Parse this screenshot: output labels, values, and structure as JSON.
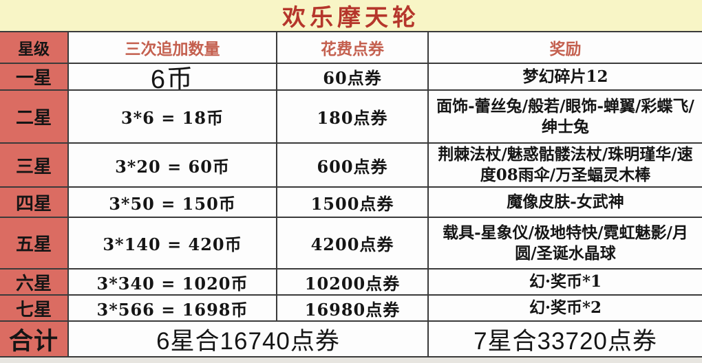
{
  "title": "欢乐摩天轮",
  "table": {
    "columns": [
      "星级",
      "三次追加数量",
      "花费点券",
      "奖励"
    ],
    "rows": [
      {
        "star": "一星",
        "quantity": "6币",
        "cost": "60点券",
        "reward": "梦幻碎片12"
      },
      {
        "star": "二星",
        "quantity": "3*6 = 18币",
        "cost": "180点券",
        "reward": "面饰-蕾丝兔/般若/眼饰-蝉翼/彩蝶飞/绅士兔"
      },
      {
        "star": "三星",
        "quantity": "3*20 = 60币",
        "cost": "600点券",
        "reward": "荆棘法杖/魅惑骷髅法杖/珠明瑾华/速度08雨伞/万圣蝠灵木棒"
      },
      {
        "star": "四星",
        "quantity": "3*50 = 150币",
        "cost": "1500点券",
        "reward": "魔像皮肤-女武神"
      },
      {
        "star": "五星",
        "quantity": "3*140 = 420币",
        "cost": "4200点券",
        "reward": "载具-星象仪/极地特快/霓虹魅影/月圆/圣诞水晶球"
      },
      {
        "star": "六星",
        "quantity": "3*340 = 1020币",
        "cost": "10200点券",
        "reward": "幻·奖币*1"
      },
      {
        "star": "七星",
        "quantity": "3*566 = 1698币",
        "cost": "16980点券",
        "reward": "幻·奖币*2"
      }
    ],
    "footer": {
      "label": "合计",
      "six_star_total": "6星合16740点券",
      "seven_star_total": "7星合33720点券"
    }
  },
  "colors": {
    "red-cell": "#db6c62",
    "title-bg": "#f8f5c6",
    "title-fg": "#b5362b",
    "header-fg": "#c4604f",
    "border": "#3a3a3a",
    "ink": "#151515",
    "strip": "#e7e5e0"
  }
}
